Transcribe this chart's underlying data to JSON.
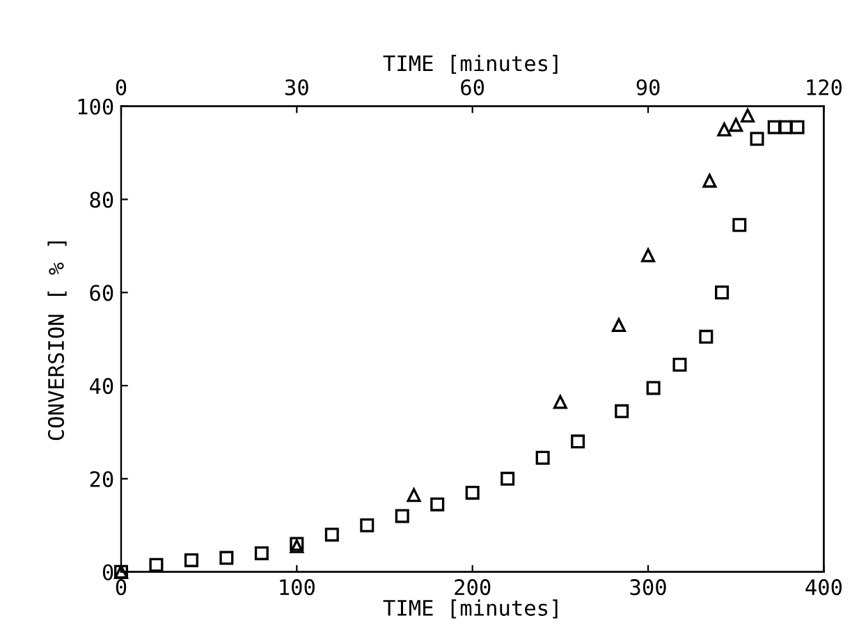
{
  "chart_data": {
    "type": "scatter",
    "xlabel": "TIME [minutes]",
    "x2label": "TIME [minutes]",
    "ylabel": "CONVERSION [ % ]",
    "xlim": [
      0,
      400
    ],
    "xticks": [
      0,
      100,
      200,
      300,
      400
    ],
    "x2lim": [
      0,
      120
    ],
    "x2ticks": [
      0,
      30,
      60,
      90,
      120
    ],
    "ylim": [
      0,
      100
    ],
    "yticks": [
      0,
      20,
      40,
      60,
      80,
      100
    ],
    "grid": false,
    "legend": false,
    "series": [
      {
        "color": "#000000",
        "marker": "square",
        "x": [
          0,
          20,
          40,
          60,
          80,
          100,
          120,
          140,
          160,
          180,
          200,
          220,
          240,
          260,
          285,
          303,
          318,
          333,
          342,
          352,
          362,
          372,
          378,
          385
        ],
        "values": [
          0,
          1.5,
          2.5,
          3,
          4,
          6,
          8,
          10,
          12,
          14.5,
          17,
          20,
          24.5,
          28,
          34.5,
          39.5,
          44.5,
          50.5,
          60,
          74.5,
          93,
          95.5,
          95.5,
          95.5
        ]
      },
      {
        "color": "#000000",
        "marker": "triangle",
        "axis": "x2",
        "x": [
          0,
          30,
          50,
          75,
          85,
          90,
          100.5,
          103,
          105,
          107
        ],
        "values": [
          0,
          5.5,
          16.5,
          36.5,
          53,
          68,
          84,
          95,
          96,
          98
        ]
      }
    ]
  }
}
